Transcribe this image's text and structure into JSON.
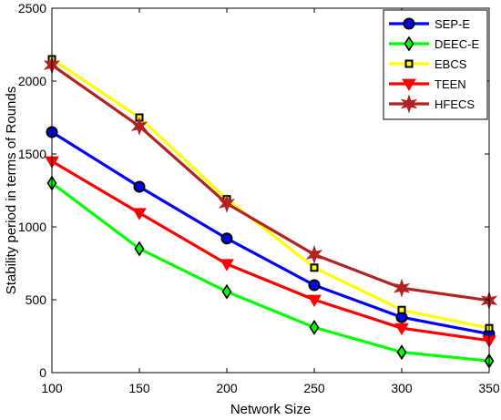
{
  "chart_data": {
    "type": "line",
    "xlabel": "Network Size",
    "ylabel": "Stability period in terms of Rounds",
    "x": [
      100,
      150,
      200,
      250,
      300,
      350
    ],
    "xlim": [
      100,
      350
    ],
    "ylim": [
      0,
      2500
    ],
    "xticks": [
      "100",
      "150",
      "200",
      "250",
      "300",
      "350"
    ],
    "yticks": [
      "0",
      "500",
      "1000",
      "1500",
      "2000",
      "2500"
    ],
    "legend_position": "top-right",
    "grid": false,
    "series": [
      {
        "name": "SEP-E",
        "color": "#0000ff",
        "marker": "circle",
        "values": [
          1650,
          1275,
          920,
          600,
          380,
          265
        ]
      },
      {
        "name": "DEEC-E",
        "color": "#00ff00",
        "marker": "diamond",
        "values": [
          1300,
          850,
          555,
          310,
          140,
          80
        ]
      },
      {
        "name": "EBCS",
        "color": "#ffff00",
        "marker": "square",
        "values": [
          2150,
          1750,
          1190,
          720,
          430,
          305
        ]
      },
      {
        "name": "TEEN",
        "color": "#ff0000",
        "marker": "triangle-down",
        "values": [
          1450,
          1095,
          745,
          500,
          305,
          220
        ]
      },
      {
        "name": "HFECS",
        "color": "#b22222",
        "marker": "star",
        "values": [
          2110,
          1690,
          1160,
          810,
          580,
          495
        ]
      }
    ]
  }
}
